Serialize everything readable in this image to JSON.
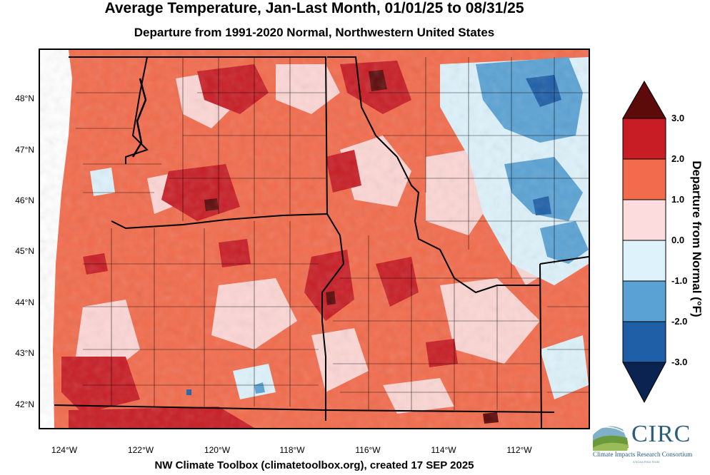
{
  "title": "Average Temperature, Jan-Last Month, 01/01/25 to 08/31/25",
  "subtitle": "Departure from 1991-2020 Normal, Northwestern United States",
  "credit": "NW Climate Toolbox (climatetoolbox.org), created 17 SEP 2025",
  "latitude_labels": [
    "48°N",
    "47°N",
    "46°N",
    "45°N",
    "44°N",
    "43°N",
    "42°N"
  ],
  "longitude_labels": [
    "124°W",
    "122°W",
    "120°W",
    "118°W",
    "116°W",
    "114°W",
    "112°W"
  ],
  "colorbar": {
    "title": "Departure from Normal (°F)",
    "tick_labels": [
      "3.0",
      "2.0",
      "1.0",
      "0.0",
      "-1.0",
      "-2.0",
      "-3.0"
    ],
    "bins": [
      {
        "range": ">3.0",
        "color": "#5c0a0a"
      },
      {
        "range": "2.0 to 3.0",
        "color": "#c81d25"
      },
      {
        "range": "1.0 to 2.0",
        "color": "#f26b4c"
      },
      {
        "range": "0.0 to 1.0",
        "color": "#fcdcdc"
      },
      {
        "range": "-1.0 to 0.0",
        "color": "#ddf2fb"
      },
      {
        "range": "-2.0 to -1.0",
        "color": "#5aa2d4"
      },
      {
        "range": "-3.0 to -2.0",
        "color": "#1f5fa8"
      },
      {
        "range": "<-3.0",
        "color": "#0a2350"
      }
    ]
  },
  "logo": {
    "name": "CIRC",
    "subtitle": "Climate Impacts Research Consortium",
    "tagline": "A NOAA RISA TEAM"
  }
}
